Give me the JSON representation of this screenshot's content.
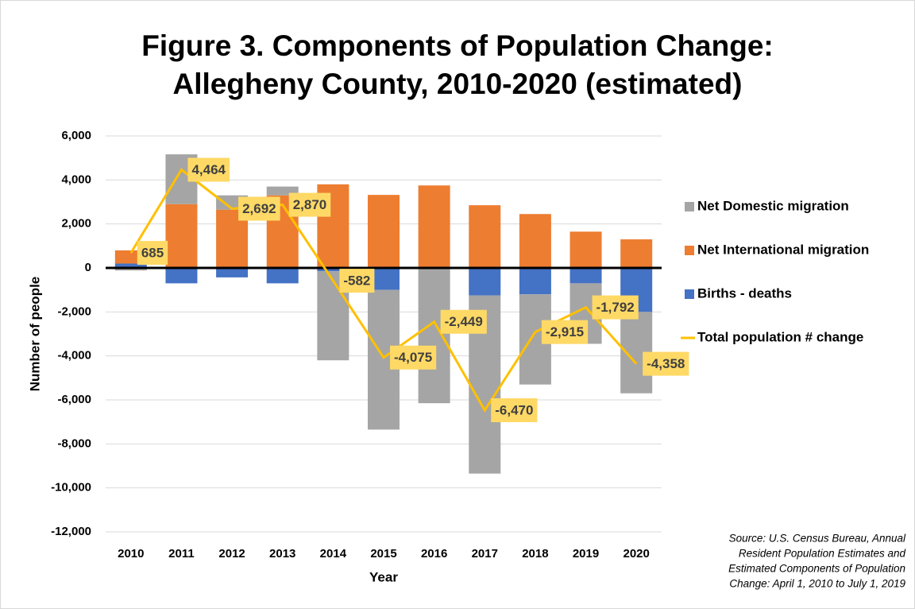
{
  "chart_data": {
    "type": "bar",
    "title": [
      "Figure 3. Components of Population Change:",
      "Allegheny County, 2010-2020 (estimated)"
    ],
    "x_label": "Year",
    "y_label": "Number of people",
    "source": [
      "Source: U.S. Census Bureau, Annual",
      "Resident Population Estimates and",
      "Estimated Components of Population",
      "Change: April 1, 2010 to July 1, 2019"
    ],
    "categories": [
      "2010",
      "2011",
      "2012",
      "2013",
      "2014",
      "2015",
      "2016",
      "2017",
      "2018",
      "2019",
      "2020"
    ],
    "series": [
      {
        "name": "Net Domestic migration",
        "color": "#a5a5a5",
        "values": [
          -115,
          2264,
          650,
          400,
          -4050,
          -6350,
          -6100,
          -8100,
          -4100,
          -2750,
          -3700
        ]
      },
      {
        "name": "Net International migration",
        "color": "#ed7d31",
        "values": [
          600,
          2900,
          2650,
          3300,
          3800,
          3320,
          3750,
          2850,
          2450,
          1650,
          1300
        ]
      },
      {
        "name": "Births - deaths",
        "color": "#4472c4",
        "values": [
          200,
          -700,
          -430,
          -700,
          -150,
          -1000,
          -50,
          -1250,
          -1200,
          -700,
          -2000
        ]
      },
      {
        "name": "Total population # change",
        "color": "#ffc000",
        "type": "line",
        "values": [
          685,
          4464,
          2692,
          2870,
          -582,
          -4075,
          -2449,
          -6470,
          -2915,
          -1792,
          -4358
        ],
        "value_labels": [
          "685",
          "4,464",
          "2,692",
          "2,870",
          "-582",
          "-4,075",
          "-2,449",
          "-6,470",
          "-2,915",
          "-1,792",
          "-4,358"
        ]
      }
    ],
    "ylim": [
      -12000,
      6000
    ],
    "yticks": [
      {
        "value": -12000,
        "label": "-12,000"
      },
      {
        "value": -10000,
        "label": "-10,000"
      },
      {
        "value": -8000,
        "label": "-8,000"
      },
      {
        "value": -6000,
        "label": "-6,000"
      },
      {
        "value": -4000,
        "label": "-4,000"
      },
      {
        "value": -2000,
        "label": "-2,000"
      },
      0,
      {
        "value": 2000,
        "label": "2,000"
      },
      {
        "value": 4000,
        "label": "4,000"
      },
      {
        "value": 6000,
        "label": "6,000"
      }
    ],
    "grid": true
  }
}
